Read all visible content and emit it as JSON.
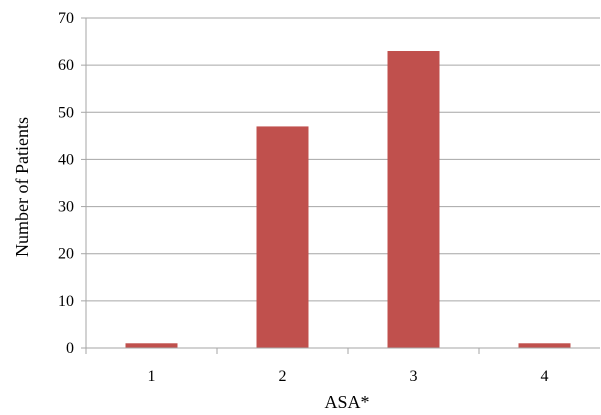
{
  "chart_data": {
    "type": "bar",
    "categories": [
      "1",
      "2",
      "3",
      "4"
    ],
    "values": [
      1,
      47,
      63,
      1
    ],
    "xlabel": "ASA*",
    "ylabel": "Number of Patients",
    "ylim": [
      0,
      70
    ],
    "yticks": [
      0,
      10,
      20,
      30,
      40,
      50,
      60,
      70
    ],
    "grid": true,
    "legend": "none",
    "colors": {
      "bar": "#c0504d",
      "grid": "#a6a6a6",
      "axis": "#a6a6a6"
    }
  }
}
